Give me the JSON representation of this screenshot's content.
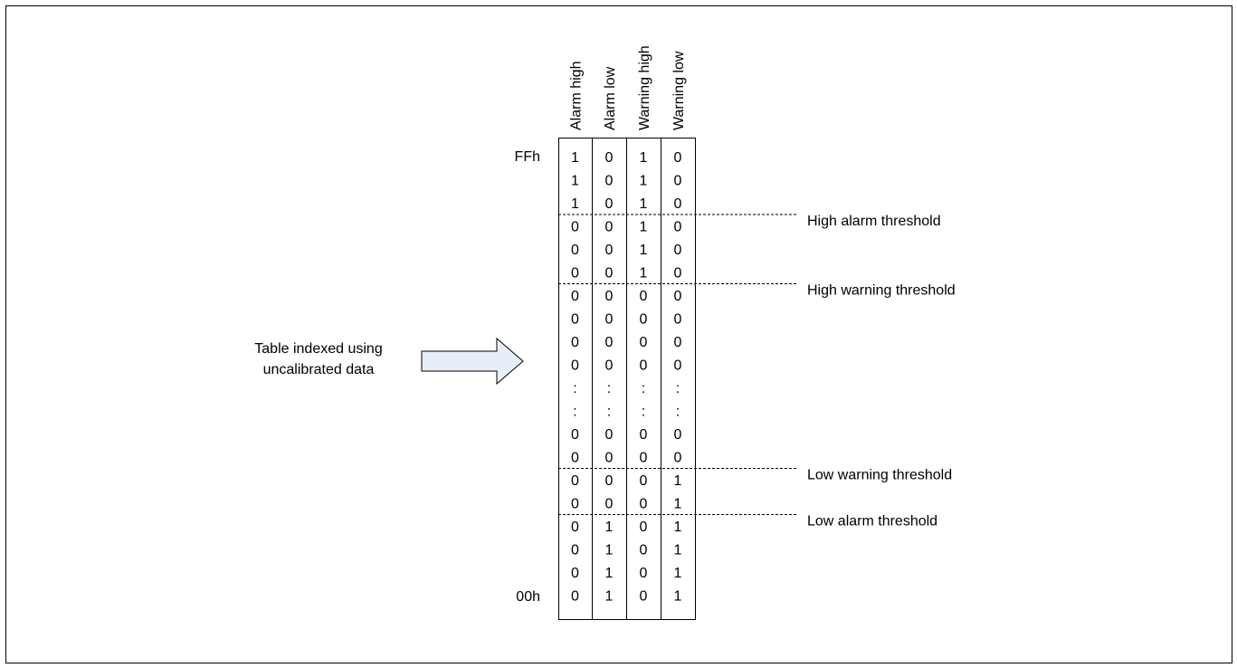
{
  "diagram": {
    "columns": [
      "Alarm high",
      "Alarm low",
      "Warning high",
      "Warning low"
    ],
    "row_label_top": "FFh",
    "row_label_bottom": "00h",
    "source_label_lines": [
      "Table indexed using",
      "uncalibrated data"
    ],
    "rows": [
      [
        "1",
        "0",
        "1",
        "0"
      ],
      [
        "1",
        "0",
        "1",
        "0"
      ],
      [
        "1",
        "0",
        "1",
        "0"
      ],
      [
        "0",
        "0",
        "1",
        "0"
      ],
      [
        "0",
        "0",
        "1",
        "0"
      ],
      [
        "0",
        "0",
        "1",
        "0"
      ],
      [
        "0",
        "0",
        "0",
        "0"
      ],
      [
        "0",
        "0",
        "0",
        "0"
      ],
      [
        "0",
        "0",
        "0",
        "0"
      ],
      [
        "0",
        "0",
        "0",
        "0"
      ],
      [
        ":",
        ":",
        ":",
        ":"
      ],
      [
        ":",
        ":",
        ":",
        ":"
      ],
      [
        "0",
        "0",
        "0",
        "0"
      ],
      [
        "0",
        "0",
        "0",
        "0"
      ],
      [
        "0",
        "0",
        "0",
        "1"
      ],
      [
        "0",
        "0",
        "0",
        "1"
      ],
      [
        "0",
        "1",
        "0",
        "1"
      ],
      [
        "0",
        "1",
        "0",
        "1"
      ],
      [
        "0",
        "1",
        "0",
        "1"
      ],
      [
        "0",
        "1",
        "0",
        "1"
      ]
    ],
    "thresholds": [
      {
        "label": "High alarm threshold",
        "after_row": 3
      },
      {
        "label": "High warning threshold",
        "after_row": 6
      },
      {
        "label": "Low warning threshold",
        "after_row": 14
      },
      {
        "label": "Low alarm threshold",
        "after_row": 16
      }
    ],
    "colors": {
      "frame": "#000000",
      "arrow_fill": "#e8eef7",
      "dashed_line": "#000000"
    }
  }
}
